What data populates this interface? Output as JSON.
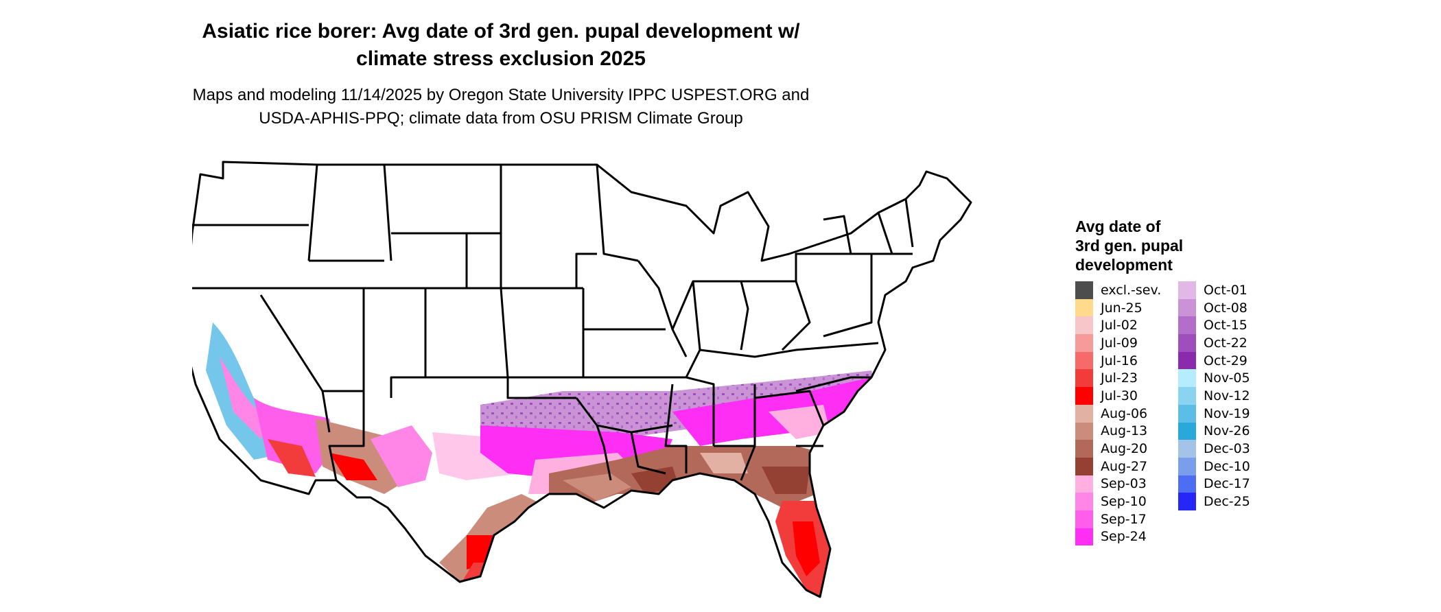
{
  "title_line1": "Asiatic rice borer: Avg date of 3rd gen. pupal development w/",
  "title_line2": "climate stress exclusion 2025",
  "subtitle_line1": "Maps and modeling 11/14/2025 by Oregon State University IPPC USPEST.ORG and",
  "subtitle_line2": "USDA-APHIS-PPQ; climate data from OSU PRISM Climate Group",
  "legend": {
    "title_line1": "Avg date of",
    "title_line2": "3rd gen. pupal",
    "title_line3": "development",
    "col1": [
      {
        "label": "excl.-sev.",
        "color": "#4d4d4d"
      },
      {
        "label": "Jun-25",
        "color": "#ffd98c"
      },
      {
        "label": "Jul-02",
        "color": "#f7c6c9"
      },
      {
        "label": "Jul-09",
        "color": "#f79a9a"
      },
      {
        "label": "Jul-16",
        "color": "#f76a6a"
      },
      {
        "label": "Jul-23",
        "color": "#f23b3b"
      },
      {
        "label": "Jul-30",
        "color": "#ff0000"
      },
      {
        "label": "Aug-06",
        "color": "#e2b1a3"
      },
      {
        "label": "Aug-13",
        "color": "#cc8c7c"
      },
      {
        "label": "Aug-20",
        "color": "#b2695a"
      },
      {
        "label": "Aug-27",
        "color": "#944032"
      },
      {
        "label": "Sep-03",
        "color": "#ffb0e1"
      },
      {
        "label": "Sep-10",
        "color": "#ff85e6"
      },
      {
        "label": "Sep-17",
        "color": "#ff5eeb"
      },
      {
        "label": "Sep-24",
        "color": "#ff2ef5"
      }
    ],
    "col2": [
      {
        "label": "Oct-01",
        "color": "#e2b8e6"
      },
      {
        "label": "Oct-08",
        "color": "#c993d6"
      },
      {
        "label": "Oct-15",
        "color": "#b26ec9"
      },
      {
        "label": "Oct-22",
        "color": "#9e4fbd"
      },
      {
        "label": "Oct-29",
        "color": "#8a2aad"
      },
      {
        "label": "Nov-05",
        "color": "#b3edff"
      },
      {
        "label": "Nov-12",
        "color": "#8ad4f2"
      },
      {
        "label": "Nov-19",
        "color": "#5cbde6"
      },
      {
        "label": "Nov-26",
        "color": "#29a8db"
      },
      {
        "label": "Dec-03",
        "color": "#a3c4e6"
      },
      {
        "label": "Dec-10",
        "color": "#7a9eeb"
      },
      {
        "label": "Dec-17",
        "color": "#4d6ef2"
      },
      {
        "label": "Dec-25",
        "color": "#2626f7"
      }
    ]
  }
}
